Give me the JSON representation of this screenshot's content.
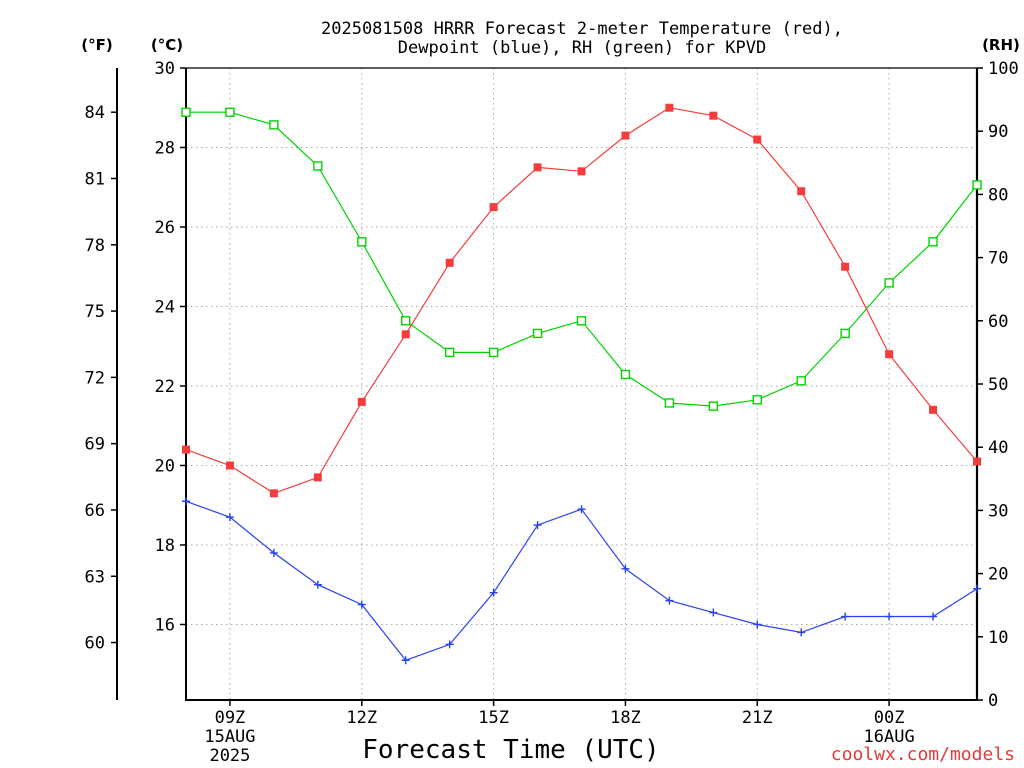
{
  "colors": {
    "background": "#ffffff",
    "axis": "#000000",
    "grid": "#a8a8a8",
    "credit": "#e8383c"
  },
  "credit": "coolwx.com/models",
  "chart_data": {
    "type": "line",
    "title_lines": [
      "2025081508 HRRR Forecast 2-meter Temperature (red),",
      "Dewpoint (blue), RH (green) for KPVD"
    ],
    "xlabel": "Forecast Time (UTC)",
    "xlim": [
      "2025-08-15T08:00Z",
      "2025-08-16T02:00Z"
    ],
    "x": [
      "2025-08-15T08:00Z",
      "2025-08-15T09:00Z",
      "2025-08-15T10:00Z",
      "2025-08-15T11:00Z",
      "2025-08-15T12:00Z",
      "2025-08-15T13:00Z",
      "2025-08-15T14:00Z",
      "2025-08-15T15:00Z",
      "2025-08-15T16:00Z",
      "2025-08-15T17:00Z",
      "2025-08-15T18:00Z",
      "2025-08-15T19:00Z",
      "2025-08-15T20:00Z",
      "2025-08-15T21:00Z",
      "2025-08-15T22:00Z",
      "2025-08-15T23:00Z",
      "2025-08-16T00:00Z",
      "2025-08-16T01:00Z",
      "2025-08-16T02:00Z"
    ],
    "x_ticks": [
      {
        "at": "2025-08-15T09:00Z",
        "label": "09Z",
        "sublabels": [
          "15AUG",
          "2025"
        ]
      },
      {
        "at": "2025-08-15T12:00Z",
        "label": "12Z",
        "sublabels": []
      },
      {
        "at": "2025-08-15T15:00Z",
        "label": "15Z",
        "sublabels": []
      },
      {
        "at": "2025-08-15T18:00Z",
        "label": "18Z",
        "sublabels": []
      },
      {
        "at": "2025-08-15T21:00Z",
        "label": "21Z",
        "sublabels": []
      },
      {
        "at": "2025-08-16T00:00Z",
        "label": "00Z",
        "sublabels": [
          "16AUG"
        ]
      }
    ],
    "y_axes": {
      "fahrenheit": {
        "label": "(°F)",
        "lim": [
          57.4,
          86
        ],
        "ticks": [
          60,
          63,
          66,
          69,
          72,
          75,
          78,
          81,
          84
        ]
      },
      "celsius": {
        "label": "(°C)",
        "lim": [
          14.1,
          30
        ],
        "ticks": [
          16,
          18,
          20,
          22,
          24,
          26,
          28,
          30
        ]
      },
      "rh": {
        "label": "(RH)",
        "lim": [
          0,
          100
        ],
        "ticks": [
          0,
          10,
          20,
          30,
          40,
          50,
          60,
          70,
          80,
          90,
          100
        ]
      }
    },
    "grid": true,
    "series": {
      "temperature": {
        "color": "#f53c3c",
        "marker": "filled-square",
        "values": [
          20.4,
          20.0,
          19.3,
          19.7,
          21.6,
          23.3,
          25.1,
          26.5,
          27.5,
          27.4,
          28.3,
          29.0,
          28.8,
          28.2,
          26.9,
          25.0,
          22.8,
          21.4,
          20.1
        ]
      },
      "dewpoint": {
        "color": "#2840f5",
        "marker": "plus",
        "values": [
          19.1,
          18.7,
          17.8,
          17.0,
          16.5,
          15.1,
          15.5,
          16.8,
          18.5,
          18.9,
          17.4,
          16.6,
          16.3,
          16.0,
          15.8,
          16.2,
          16.2,
          16.2,
          16.9
        ]
      },
      "rh": {
        "color": "#00d400",
        "marker": "open-square",
        "values": [
          93,
          93,
          91,
          84.5,
          72.5,
          60,
          55,
          55,
          58,
          60,
          51.5,
          47,
          46.5,
          47.5,
          50.5,
          58,
          66,
          72.5,
          81.5
        ]
      }
    }
  }
}
